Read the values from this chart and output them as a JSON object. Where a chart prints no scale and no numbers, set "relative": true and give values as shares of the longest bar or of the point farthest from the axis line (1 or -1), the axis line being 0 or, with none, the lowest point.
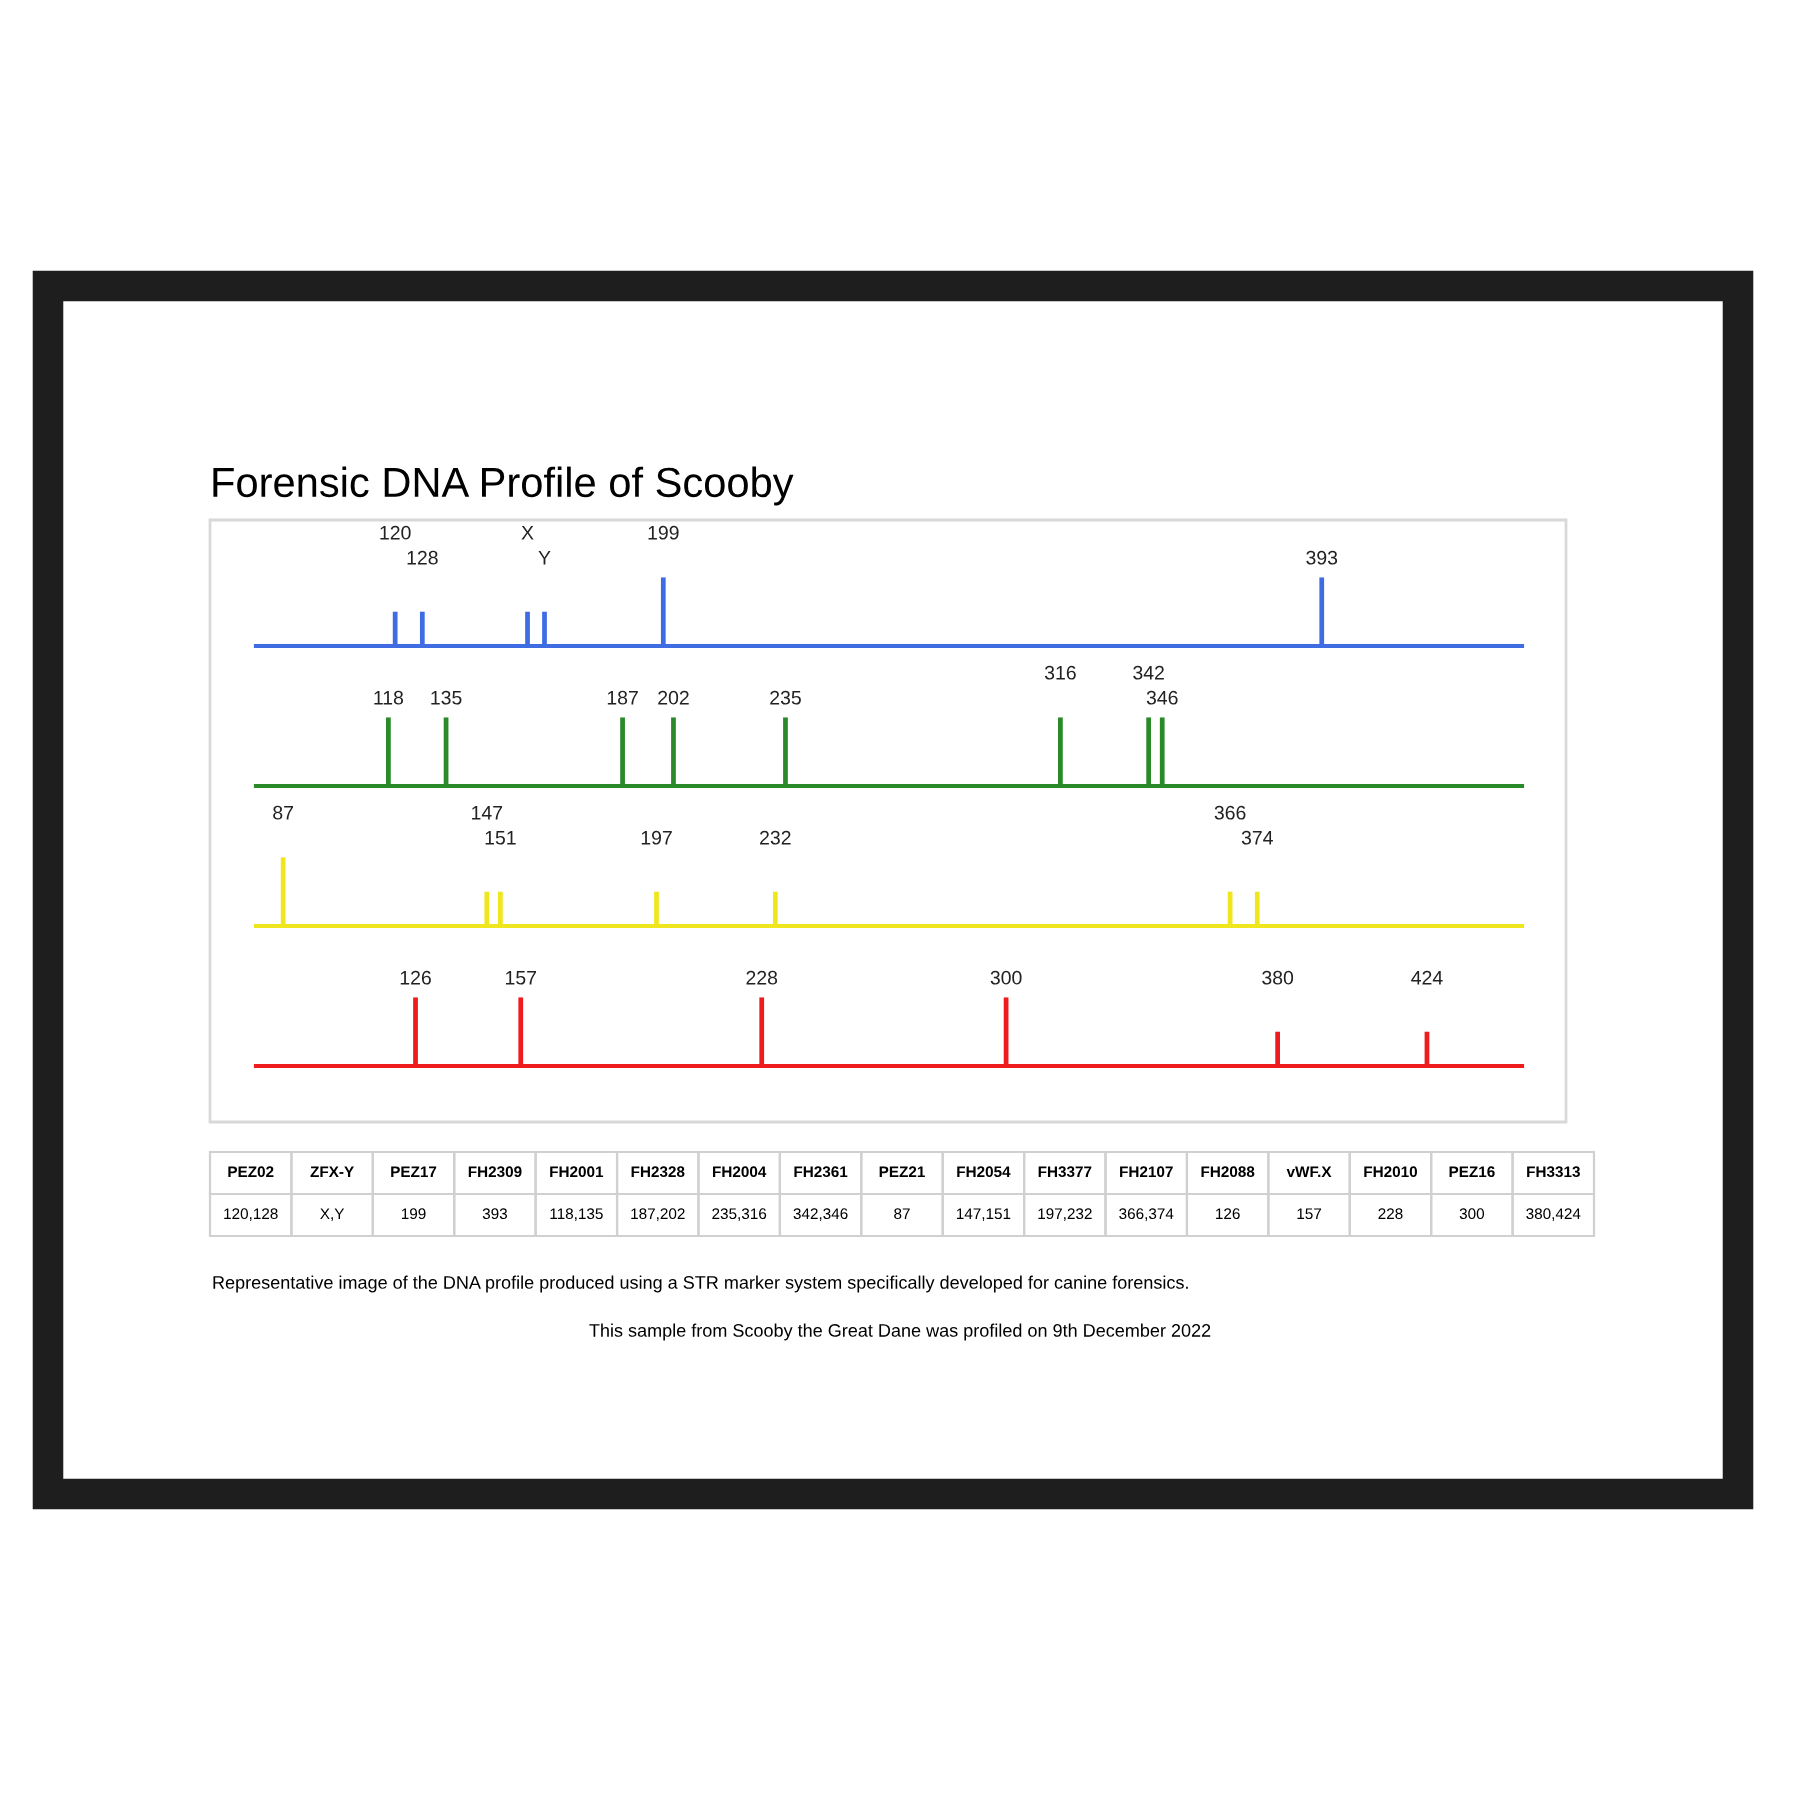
{
  "chart_data": [
    {
      "type": "bar",
      "title": "Forensic DNA Profile of Scooby",
      "relative": true,
      "xlim": [
        79,
        452
      ],
      "tick_labels": "x",
      "color": "#3f6be3",
      "xticks": [
        128,
        {
          "value": 164,
          "label": "Y"
        },
        393
      ],
      "x2lim": [
        79,
        452
      ],
      "x2ticks": [
        120,
        {
          "value": 159,
          "label": "X"
        },
        199
      ],
      "x": [
        120,
        128,
        159,
        164,
        199,
        393
      ],
      "values": [
        0.5,
        0.5,
        0.5,
        0.5,
        1,
        1
      ]
    },
    {
      "type": "bar",
      "relative": true,
      "xlim": [
        79,
        452
      ],
      "tick_labels": "x",
      "color": "#2a8a2a",
      "xticks": [
        118,
        135,
        187,
        202,
        235,
        346
      ],
      "x2lim": [
        79,
        452
      ],
      "x2ticks": [
        316,
        342
      ],
      "x": [
        118,
        135,
        187,
        202,
        235,
        316,
        342,
        346
      ],
      "values": [
        1,
        1,
        1,
        1,
        1,
        1,
        1,
        1
      ]
    },
    {
      "type": "bar",
      "relative": true,
      "xlim": [
        79,
        452
      ],
      "tick_labels": "x",
      "color": "#f0e61e",
      "xticks": [
        151,
        197,
        232,
        374
      ],
      "x2lim": [
        79,
        452
      ],
      "x2ticks": [
        87,
        147,
        366
      ],
      "x": [
        87,
        147,
        151,
        197,
        232,
        366,
        374
      ],
      "values": [
        1,
        0.5,
        0.5,
        0.5,
        0.5,
        0.5,
        0.5
      ]
    },
    {
      "type": "bar",
      "relative": true,
      "xlim": [
        79,
        452
      ],
      "tick_labels": "x",
      "color": "#ee1c1c",
      "xticks": [
        126,
        157,
        228,
        300,
        380,
        424
      ],
      "x": [
        126,
        157,
        228,
        300,
        380,
        424
      ],
      "values": [
        1,
        1,
        1,
        1,
        0.5,
        0.5
      ]
    },
    {
      "type": "other",
      "categories": [
        "PEZ02",
        "ZFX-Y",
        "PEZ17",
        "FH2309",
        "FH2001",
        "FH2328",
        "FH2004",
        "FH2361",
        "PEZ21",
        "FH2054",
        "FH3377",
        "FH2107",
        "FH2088",
        "vWF.X",
        "FH2010",
        "PEZ16",
        "FH3313"
      ],
      "value_labels": [
        "120,128",
        "X,Y",
        "199",
        "393",
        "118,135",
        "187,202",
        "235,316",
        "342,346",
        "87",
        "147,151",
        "197,232",
        "366,374",
        "126",
        "157",
        "228",
        "300",
        "380,424"
      ],
      "annotations": [
        "Representative image of the DNA profile produced using a STR marker system specifically developed for canine forensics.",
        "This sample from Scooby the Great Dane was profiled on 9th December 2022"
      ]
    }
  ]
}
